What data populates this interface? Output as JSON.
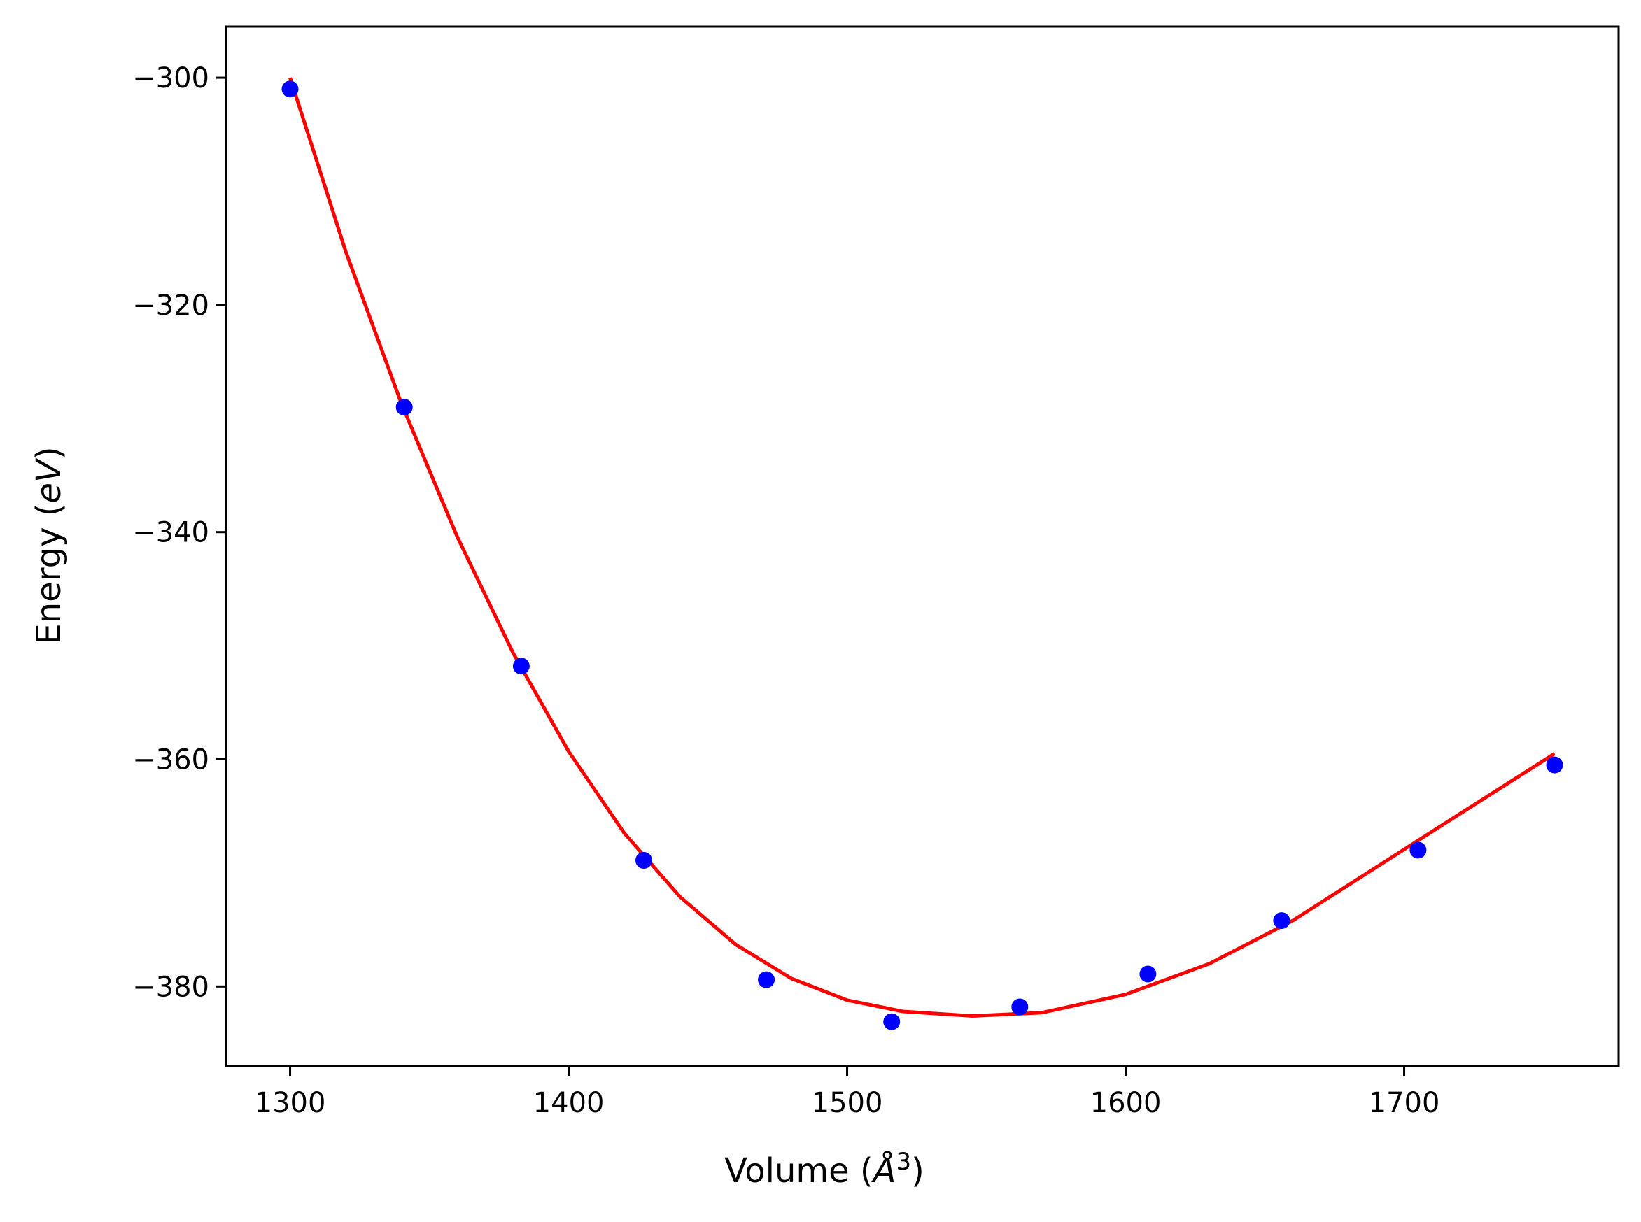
{
  "chart_data": {
    "type": "scatter",
    "xlabel": {
      "main": "Volume (",
      "italic": "Å",
      "sup": "3",
      "close": ")"
    },
    "ylabel": {
      "main": "Energy (",
      "italic": "eV",
      "close": ")"
    },
    "xlim": [
      1277,
      1777
    ],
    "ylim": [
      -387,
      -295.5
    ],
    "x_ticks": [
      1300,
      1400,
      1500,
      1600,
      1700
    ],
    "x_tick_labels": [
      "1300",
      "1400",
      "1500",
      "1600",
      "1700"
    ],
    "y_ticks": [
      -300,
      -320,
      -340,
      -360,
      -380
    ],
    "y_tick_labels": [
      "−300",
      "−320",
      "−340",
      "−360",
      "−380"
    ],
    "grid": false,
    "series": [
      {
        "kind": "points",
        "color": "#0000ff",
        "x": [
          1300,
          1341,
          1383,
          1427,
          1471,
          1516,
          1562,
          1608,
          1656,
          1705,
          1754
        ],
        "y": [
          -301.0,
          -329.0,
          -351.8,
          -368.9,
          -379.4,
          -383.1,
          -381.8,
          -378.9,
          -374.2,
          -368.0,
          -360.5
        ]
      },
      {
        "kind": "fit-line",
        "color": "#ff0000",
        "x": [
          1300,
          1320,
          1340,
          1360,
          1380,
          1400,
          1420,
          1440,
          1460,
          1480,
          1500,
          1520,
          1545,
          1570,
          1600,
          1630,
          1660,
          1690,
          1720,
          1754
        ],
        "y": [
          -300.0,
          -315.3,
          -328.7,
          -340.4,
          -350.6,
          -359.3,
          -366.5,
          -372.1,
          -376.3,
          -379.3,
          -381.2,
          -382.2,
          -382.6,
          -382.3,
          -380.7,
          -378.0,
          -374.2,
          -369.5,
          -364.8,
          -359.5
        ]
      }
    ]
  },
  "colors": {
    "points": "#0000ff",
    "fit_line": "#ff0000",
    "axes": "#000000",
    "background": "#ffffff"
  }
}
